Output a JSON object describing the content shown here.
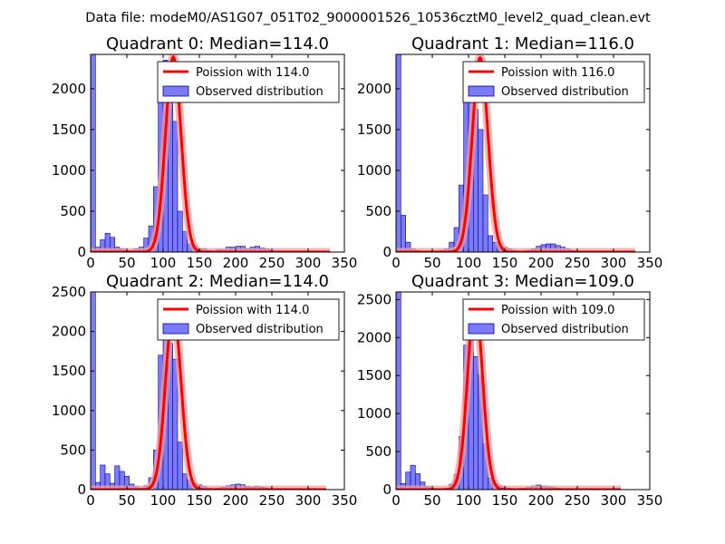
{
  "title": "Data file: modeM0/AS1G07_051T02_9000001526_10536cztM0_level2_quad_clean.evt",
  "colors": {
    "bar_fill": "#7b7bf5",
    "bar_edge": "#0000aa",
    "fit_line": "#ff0000",
    "fit_glow": "#f4a0a0",
    "axes": "#000000",
    "legend_edge": "#222222",
    "background": "#ffffff"
  },
  "chart_data": [
    {
      "type": "bar",
      "title": "Quadrant 0: Median=114.0",
      "median": 114.0,
      "xlim": [
        0,
        350
      ],
      "ylim": [
        0,
        2420
      ],
      "xticks": [
        0,
        50,
        100,
        150,
        200,
        250,
        300,
        350
      ],
      "yticks": [
        0,
        500,
        1000,
        1500,
        2000
      ],
      "bin_width": 6.67,
      "bins_x": [
        0.0,
        6.67,
        13.33,
        20.0,
        26.67,
        33.33,
        40.0,
        46.67,
        53.33,
        60.0,
        66.67,
        73.33,
        80.0,
        86.67,
        93.33,
        100.0,
        106.67,
        113.33,
        120.0,
        126.67,
        133.33,
        140.0,
        146.67,
        153.33,
        160.0,
        166.67,
        173.33,
        180.0,
        186.67,
        193.33,
        200.0,
        206.67,
        213.33,
        220.0,
        226.67,
        233.33,
        240.0,
        246.67,
        253.33,
        260.0,
        266.67,
        273.33,
        280.0,
        286.67,
        293.33,
        300.0,
        306.67,
        313.33,
        320.0
      ],
      "counts": [
        2420,
        60,
        150,
        230,
        180,
        60,
        40,
        20,
        20,
        40,
        60,
        170,
        320,
        800,
        1900,
        2350,
        1850,
        1600,
        500,
        250,
        100,
        70,
        40,
        40,
        20,
        10,
        30,
        30,
        60,
        60,
        70,
        70,
        40,
        60,
        70,
        50,
        40,
        20,
        10,
        10,
        10,
        0,
        0,
        0,
        0,
        0,
        0,
        0,
        0
      ],
      "fit_x_range": [
        0,
        330
      ],
      "fit_peak": 2390,
      "fit_sigma": 10.7,
      "legend": {
        "position": "top-right",
        "fit_label": "Poission with 114.0",
        "hist_label": "Observed distribution"
      }
    },
    {
      "type": "bar",
      "title": "Quadrant 1: Median=116.0",
      "median": 116.0,
      "xlim": [
        0,
        350
      ],
      "ylim": [
        0,
        2420
      ],
      "xticks": [
        0,
        50,
        100,
        150,
        200,
        250,
        300,
        350
      ],
      "yticks": [
        0,
        500,
        1000,
        1500,
        2000
      ],
      "bin_width": 6.67,
      "bins_x": [
        0.0,
        6.67,
        13.33,
        20.0,
        26.67,
        33.33,
        40.0,
        46.67,
        53.33,
        60.0,
        66.67,
        73.33,
        80.0,
        86.67,
        93.33,
        100.0,
        106.67,
        113.33,
        120.0,
        126.67,
        133.33,
        140.0,
        146.67,
        153.33,
        160.0,
        166.67,
        173.33,
        180.0,
        186.67,
        193.33,
        200.0,
        206.67,
        213.33,
        220.0,
        226.67,
        233.33,
        240.0,
        246.67,
        253.33,
        260.0,
        266.67,
        273.33,
        280.0,
        286.67,
        293.33,
        300.0,
        306.67,
        313.33,
        320.0
      ],
      "counts": [
        2420,
        450,
        120,
        40,
        20,
        10,
        10,
        10,
        10,
        20,
        40,
        120,
        300,
        820,
        1950,
        2300,
        1750,
        1500,
        700,
        200,
        120,
        80,
        60,
        40,
        20,
        10,
        10,
        20,
        40,
        70,
        90,
        100,
        100,
        80,
        60,
        40,
        20,
        10,
        10,
        0,
        0,
        0,
        0,
        0,
        0,
        0,
        0,
        0,
        0
      ],
      "fit_x_range": [
        0,
        330
      ],
      "fit_peak": 2380,
      "fit_sigma": 10.8,
      "legend": {
        "position": "top-right",
        "fit_label": "Poission with 116.0",
        "hist_label": "Observed distribution"
      }
    },
    {
      "type": "bar",
      "title": "Quadrant 2: Median=114.0",
      "median": 114.0,
      "xlim": [
        0,
        350
      ],
      "ylim": [
        0,
        2500
      ],
      "xticks": [
        0,
        50,
        100,
        150,
        200,
        250,
        300,
        350
      ],
      "yticks": [
        0,
        500,
        1000,
        1500,
        2000,
        2500
      ],
      "bin_width": 6.67,
      "bins_x": [
        0.0,
        6.67,
        13.33,
        20.0,
        26.67,
        33.33,
        40.0,
        46.67,
        53.33,
        60.0,
        66.67,
        73.33,
        80.0,
        86.67,
        93.33,
        100.0,
        106.67,
        113.33,
        120.0,
        126.67,
        133.33,
        140.0,
        146.67,
        153.33,
        160.0,
        166.67,
        173.33,
        180.0,
        186.67,
        193.33,
        200.0,
        206.67,
        213.33,
        220.0,
        226.67,
        233.33,
        240.0,
        246.67,
        253.33,
        260.0,
        266.67,
        273.33,
        280.0,
        286.67,
        293.33,
        300.0,
        306.67,
        313.33,
        320.0
      ],
      "counts": [
        2500,
        90,
        310,
        200,
        80,
        300,
        230,
        170,
        70,
        40,
        20,
        50,
        150,
        500,
        1700,
        2250,
        1850,
        1650,
        600,
        200,
        120,
        80,
        60,
        40,
        20,
        10,
        20,
        30,
        50,
        60,
        70,
        60,
        40,
        30,
        40,
        30,
        20,
        10,
        10,
        0,
        0,
        0,
        0,
        0,
        0,
        0,
        0,
        0,
        0
      ],
      "fit_x_range": [
        0,
        325
      ],
      "fit_peak": 2260,
      "fit_sigma": 10.7,
      "legend": {
        "position": "top-right",
        "fit_label": "Poission with 114.0",
        "hist_label": "Observed distribution"
      }
    },
    {
      "type": "bar",
      "title": "Quadrant 3: Median=109.0",
      "median": 109.0,
      "xlim": [
        0,
        350
      ],
      "ylim": [
        0,
        2600
      ],
      "xticks": [
        0,
        50,
        100,
        150,
        200,
        250,
        300,
        350
      ],
      "yticks": [
        0,
        500,
        1000,
        1500,
        2000,
        2500
      ],
      "bin_width": 6.67,
      "bins_x": [
        0.0,
        6.67,
        13.33,
        20.0,
        26.67,
        33.33,
        40.0,
        46.67,
        53.33,
        60.0,
        66.67,
        73.33,
        80.0,
        86.67,
        93.33,
        100.0,
        106.67,
        113.33,
        120.0,
        126.67,
        133.33,
        140.0,
        146.67,
        153.33,
        160.0,
        166.67,
        173.33,
        180.0,
        186.67,
        193.33,
        200.0,
        206.67,
        213.33,
        220.0,
        226.67,
        233.33,
        240.0,
        246.67,
        253.33,
        260.0,
        266.67,
        273.33,
        280.0,
        286.67,
        293.33,
        300.0,
        306.67,
        313.33,
        320.0
      ],
      "counts": [
        2600,
        80,
        230,
        320,
        210,
        100,
        40,
        20,
        10,
        10,
        20,
        70,
        200,
        700,
        1900,
        2400,
        1750,
        1500,
        600,
        150,
        80,
        50,
        30,
        20,
        10,
        10,
        20,
        30,
        50,
        60,
        50,
        40,
        30,
        20,
        10,
        10,
        0,
        0,
        0,
        0,
        0,
        0,
        0,
        0,
        0,
        0,
        0,
        0,
        0
      ],
      "fit_x_range": [
        0,
        310
      ],
      "fit_peak": 2460,
      "fit_sigma": 10.4,
      "legend": {
        "position": "top-right",
        "fit_label": "Poission with 109.0",
        "hist_label": "Observed distribution"
      }
    }
  ]
}
